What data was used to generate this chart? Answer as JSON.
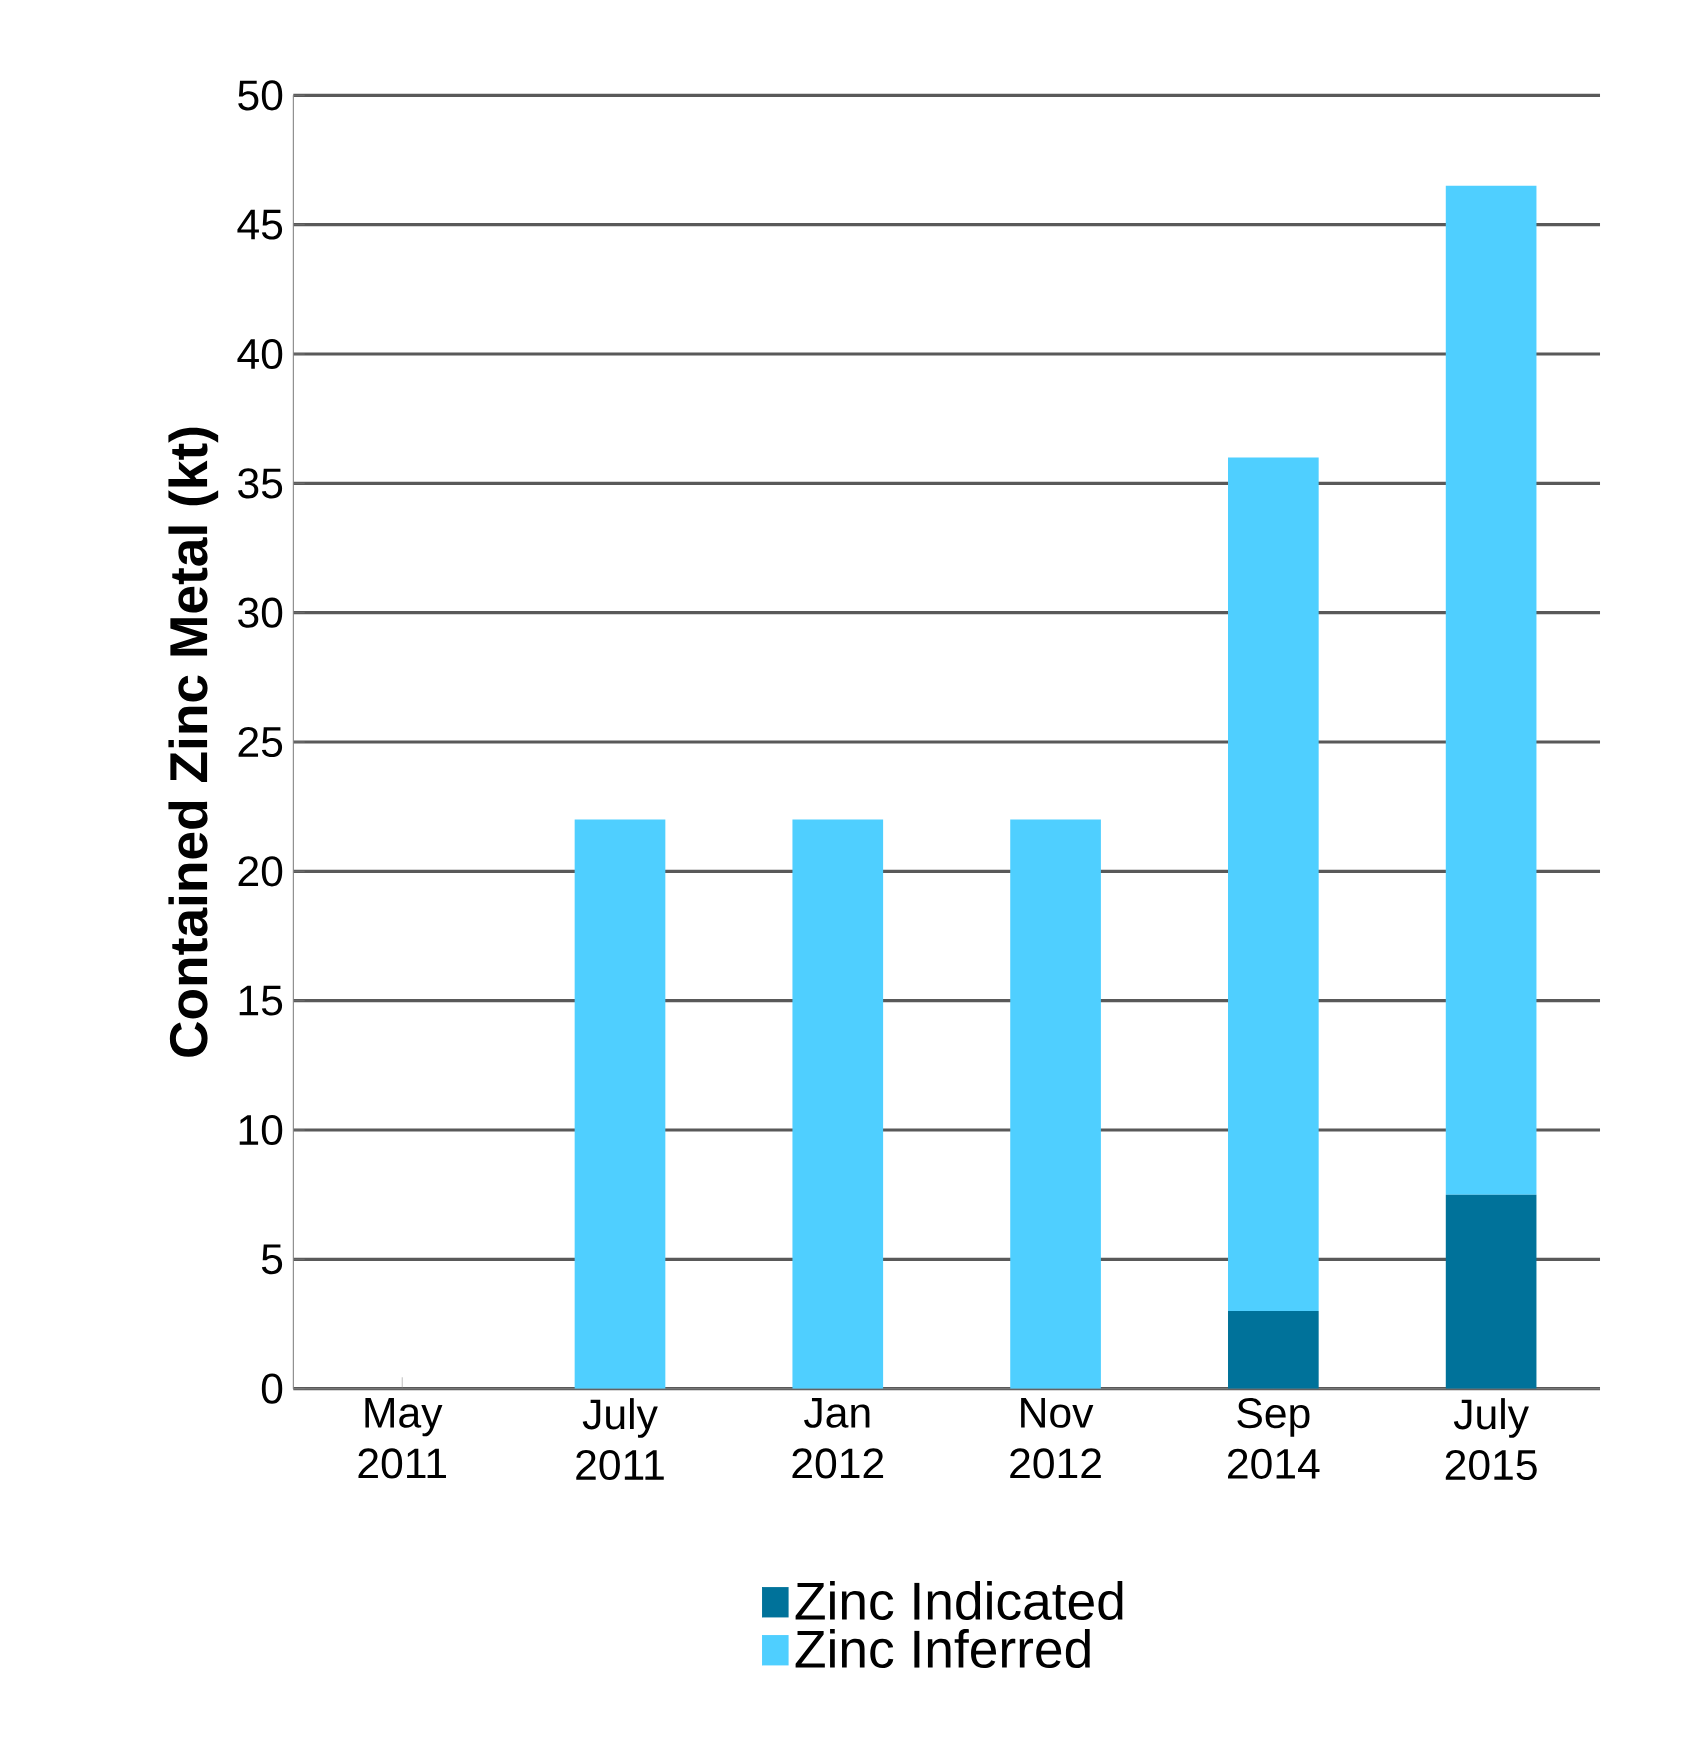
{
  "chart_data": {
    "type": "bar",
    "stacked": true,
    "ylabel": "Contained Zinc Metal (kt)",
    "categories": [
      "May\n2011",
      "July\n2011",
      "Jan\n2012",
      "Nov\n2012",
      "Sep\n2014",
      "July\n2015"
    ],
    "series": [
      {
        "name": "Zinc Indicated",
        "color": "#00729a",
        "values": [
          0,
          0,
          0,
          0,
          3,
          7.5
        ]
      },
      {
        "name": "Zinc Inferred",
        "color": "#4fcfff",
        "values": [
          0,
          22,
          22,
          22,
          33,
          39
        ]
      }
    ],
    "ylim": [
      0,
      50
    ],
    "yticks": [
      0,
      5,
      10,
      15,
      20,
      25,
      30,
      35,
      40,
      45,
      50
    ],
    "grid": "y",
    "legend": "bottom"
  }
}
